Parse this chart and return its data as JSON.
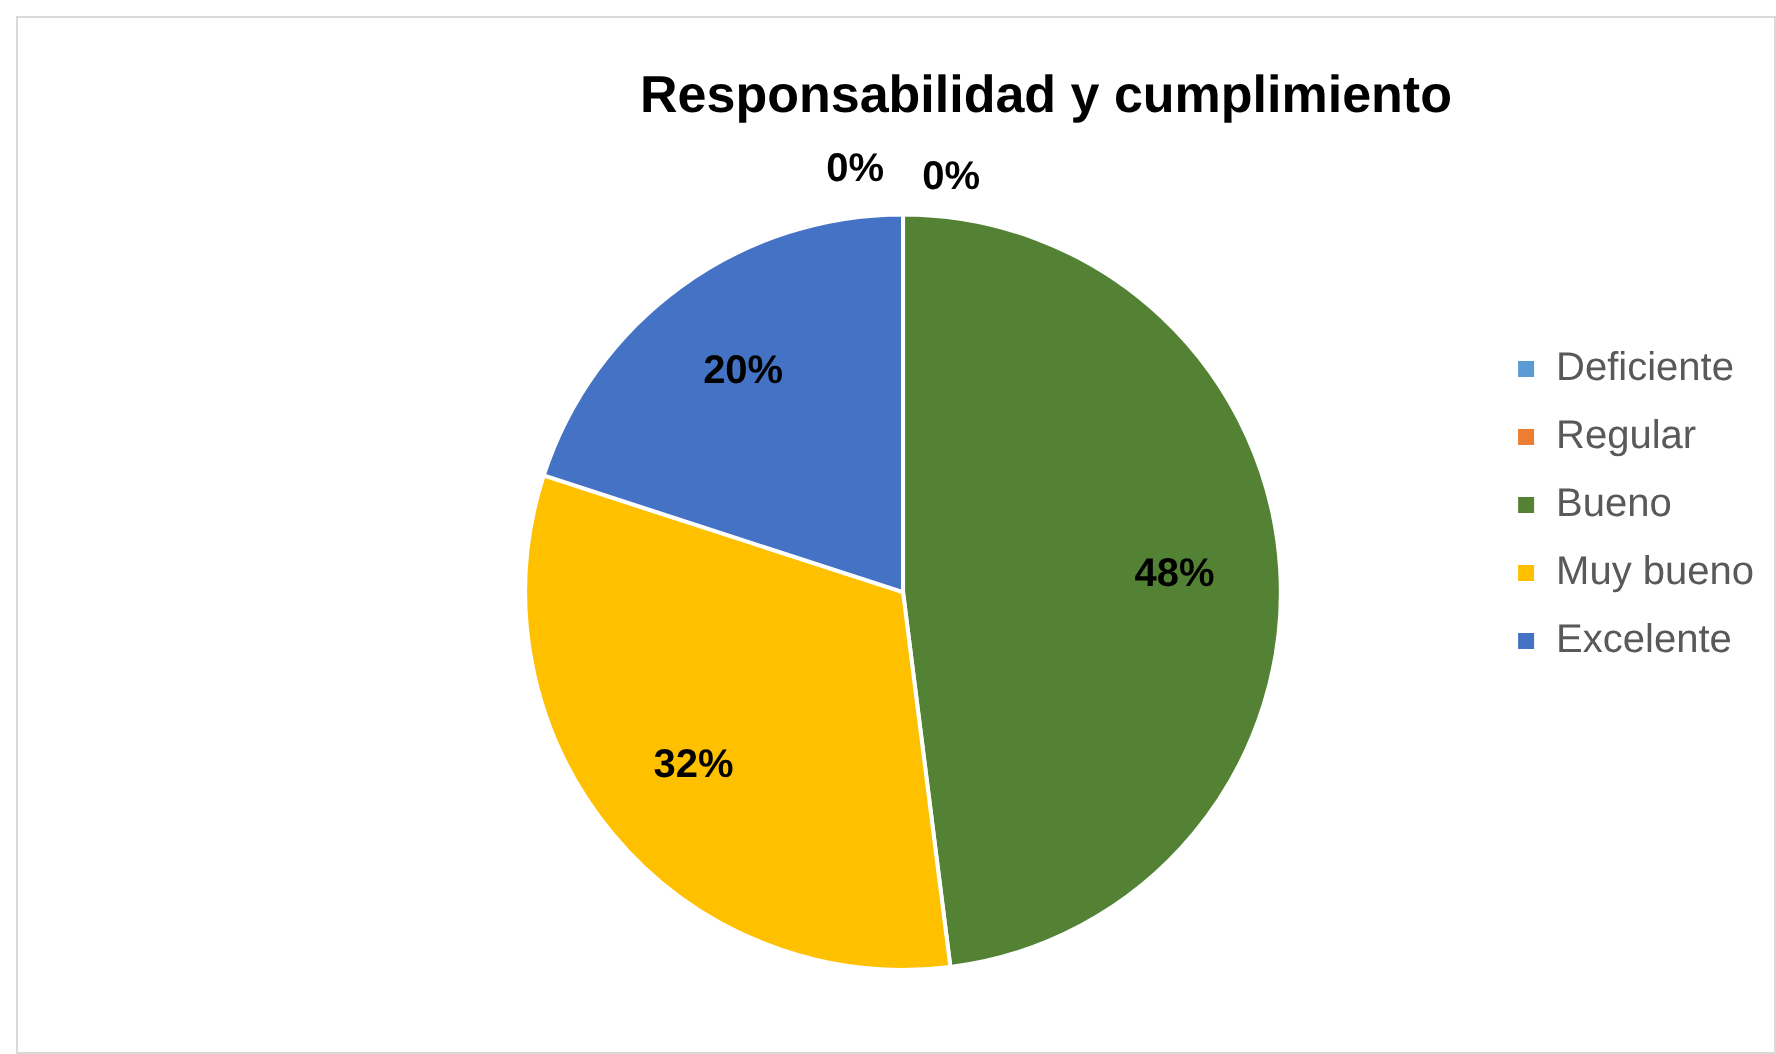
{
  "chart_data": {
    "type": "pie",
    "title": "Responsabilidad y cumplimiento",
    "categories": [
      "Deficiente",
      "Regular",
      "Bueno",
      "Muy bueno",
      "Excelente"
    ],
    "values": [
      0,
      0,
      48,
      32,
      20
    ],
    "colors": [
      "#5b9bd5",
      "#ed7d31",
      "#548235",
      "#ffc000",
      "#4472c4"
    ],
    "value_labels": [
      "0%",
      "0%",
      "48%",
      "32%",
      "20%"
    ],
    "legend": "right"
  }
}
